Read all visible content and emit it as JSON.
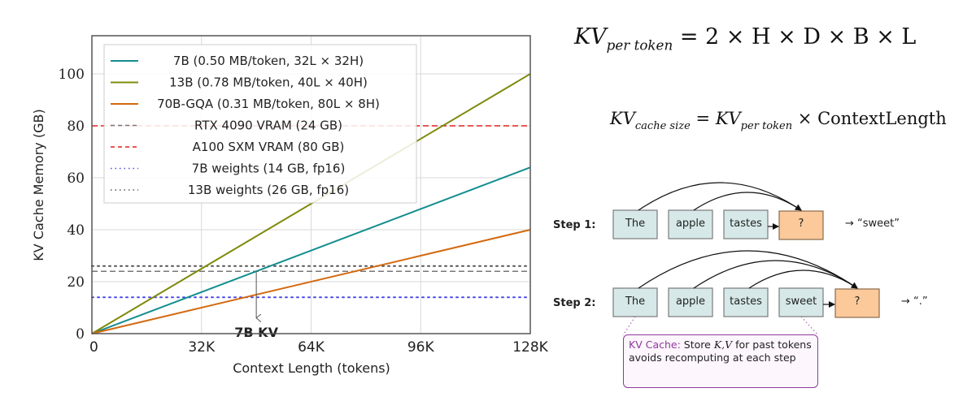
{
  "chart_data": {
    "type": "line",
    "title": "",
    "xlabel": "Context Length (tokens)",
    "ylabel": "KV Cache Memory (GB)",
    "xlim": [
      0,
      128
    ],
    "ylim": [
      0,
      114.7
    ],
    "x_unit": "K tokens",
    "grid": true,
    "legend_position": "upper-left",
    "x_ticks": [
      {
        "value": 0,
        "label": "0"
      },
      {
        "value": 32,
        "label": "32K"
      },
      {
        "value": 64,
        "label": "64K"
      },
      {
        "value": 96,
        "label": "96K"
      },
      {
        "value": 128,
        "label": "128K"
      }
    ],
    "y_ticks": [
      {
        "value": 0,
        "label": "0"
      },
      {
        "value": 20,
        "label": "20"
      },
      {
        "value": 40,
        "label": "40"
      },
      {
        "value": 60,
        "label": "60"
      },
      {
        "value": 80,
        "label": "80"
      },
      {
        "value": 100,
        "label": "100"
      }
    ],
    "series": [
      {
        "name": "7B (0.50 MB/token, 32L × 32H)",
        "color": "#138d8f",
        "style": "solid",
        "x": [
          0,
          128
        ],
        "values": [
          0,
          64
        ]
      },
      {
        "name": "13B (0.78 MB/token, 40L × 40H)",
        "color": "#7f8a0c",
        "style": "solid",
        "x": [
          0,
          128
        ],
        "values": [
          0,
          100
        ]
      },
      {
        "name": "70B-GQA (0.31 MB/token, 80L × 8H)",
        "color": "#d4690f",
        "style": "solid",
        "x": [
          0,
          128
        ],
        "values": [
          0,
          40
        ]
      }
    ],
    "hlines": [
      {
        "name": "RTX 4090 VRAM (24 GB)",
        "value": 24,
        "color": "#777777",
        "style": "dashed"
      },
      {
        "name": "A100 SXM VRAM (80 GB)",
        "value": 80,
        "color": "#e0201c",
        "style": "dashed"
      },
      {
        "name": "7B weights (14 GB, fp16)",
        "value": 14,
        "color": "#4a4ae8",
        "style": "dotted"
      },
      {
        "name": "13B weights (26 GB, fp16)",
        "value": 26,
        "color": "#555555",
        "style": "dotted"
      }
    ],
    "annotations": [
      {
        "text": "7B KV",
        "x": 48,
        "y_from": 24,
        "y_to": 6,
        "arrow": "down"
      }
    ]
  },
  "equations": {
    "kv_per_token": {
      "lhs": "KV",
      "lhs_sub": "per token",
      "rhs": "= 2 × H × D × B × L"
    },
    "kv_cache_size": {
      "lhs": "KV",
      "lhs_sub": "cache size",
      "eq": "=",
      "rhs_var": "KV",
      "rhs_sub": "per token",
      "rhs_tail": "× ContextLength"
    }
  },
  "diagram": {
    "colors": {
      "token_fill": "#d6e9e8",
      "token_stroke": "#7a7a7a",
      "query_fill": "#fbc99a",
      "query_stroke": "#8a6a4a",
      "note_accent": "#8e3a9c"
    },
    "steps": [
      {
        "label": "Step 1:",
        "tokens": [
          "The",
          "apple",
          "tastes"
        ],
        "query": "?",
        "result": "→ “sweet”"
      },
      {
        "label": "Step 2:",
        "tokens": [
          "The",
          "apple",
          "tastes",
          "sweet"
        ],
        "query": "?",
        "result": "→ “.”"
      }
    ],
    "note": {
      "title": "KV Cache:",
      "line1_pre": "Store ",
      "line1_vars": "K,V",
      "line1_post": " for past tokens",
      "line2": "avoids recomputing at each step"
    }
  }
}
